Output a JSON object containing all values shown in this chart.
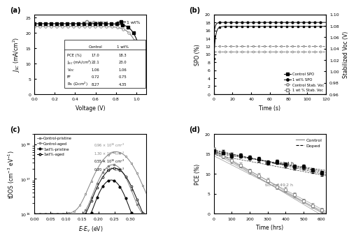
{
  "panel_a": {
    "xlim": [
      0.0,
      1.1
    ],
    "ylim": [
      0,
      26
    ],
    "yticks": [
      0,
      5,
      10,
      15,
      20,
      25
    ],
    "xticks": [
      0.0,
      0.2,
      0.4,
      0.6,
      0.8,
      1.0
    ],
    "ctrl_Jsc": 22.1,
    "ctrl_Voc": 1.06,
    "ctrl_n": 17,
    "doped_Jsc": 23.0,
    "doped_Voc": 1.065,
    "doped_n": 20,
    "table_rows": [
      "PCE (%)",
      "J$_{SC}$ (mA/cm$^2$)",
      "V$_{OC}$",
      "FF",
      "Rs ($\\Omega$\\textperiodcentered cm$^2$)"
    ],
    "ctrl_vals": [
      "17.0",
      "22.1",
      "1.06",
      "0.72",
      "8.27"
    ],
    "wt_vals": [
      "18.3",
      "23.0",
      "1.06",
      "0.75",
      "4.35"
    ]
  },
  "panel_b": {
    "xlim": [
      0,
      120
    ],
    "ylim_left": [
      0,
      20
    ],
    "ylim_right": [
      0.96,
      1.1
    ],
    "yticks_left": [
      0,
      2,
      4,
      6,
      8,
      10,
      12,
      14,
      16,
      18,
      20
    ],
    "yticks_right": [
      0.96,
      0.98,
      1.0,
      1.02,
      1.04,
      1.06,
      1.08,
      1.1
    ],
    "xticks": [
      0,
      20,
      40,
      60,
      80,
      100,
      120
    ],
    "ctrl_spo_start": 9.0,
    "ctrl_spo_end": 17.0,
    "doped_spo_start": 14.5,
    "doped_spo_end": 18.0,
    "ctrl_voc_val": 1.035,
    "doped_voc_val": 1.044
  },
  "panel_c": {
    "xlim": [
      0.0,
      0.35
    ],
    "ylim": [
      1e+16,
      2e+18
    ],
    "xticks": [
      0.0,
      0.05,
      0.1,
      0.15,
      0.2,
      0.25,
      0.3
    ]
  },
  "panel_d": {
    "xlim": [
      0,
      625
    ],
    "ylim": [
      0,
      20
    ],
    "yticks": [
      0,
      5,
      10,
      15,
      20
    ],
    "xticks": [
      0,
      100,
      200,
      300,
      400,
      500,
      600
    ],
    "pce0_ctrl": 16.0,
    "pce0_doped": 15.8,
    "t80_control": 149.2,
    "t80_doped": 410.4
  }
}
